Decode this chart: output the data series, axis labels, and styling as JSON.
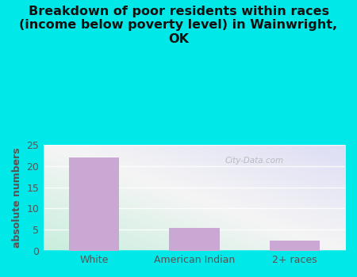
{
  "title": "Breakdown of poor residents within races\n(income below poverty level) in Wainwright,\nOK",
  "categories": [
    "White",
    "American Indian",
    "2+ races"
  ],
  "values": [
    22,
    5.4,
    2.5
  ],
  "bar_color": "#c9a8d4",
  "ylabel": "absolute numbers",
  "ylim": [
    0,
    25
  ],
  "yticks": [
    0,
    5,
    10,
    15,
    20,
    25
  ],
  "fig_bg": "#00e8e8",
  "plot_bg_topleft": "#e8f5ee",
  "plot_bg_topright": "#eeeeff",
  "plot_bg_bottomleft": "#c8eedd",
  "title_color": "#111111",
  "title_fontsize": 11.5,
  "watermark": "City-Data.com",
  "bar_width": 0.5,
  "tick_color": "#555555",
  "ylabel_color": "#555555"
}
